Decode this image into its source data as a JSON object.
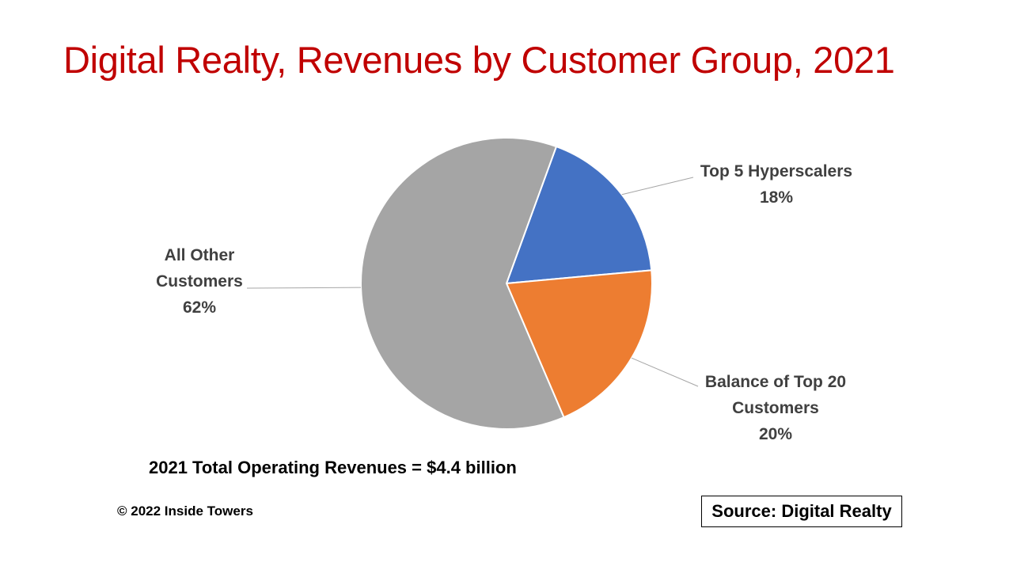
{
  "title": "Digital Realty, Revenues by Customer Group, 2021",
  "chart_data": {
    "type": "pie",
    "slices": [
      {
        "label_lines": [
          "Top 5 Hyperscalers"
        ],
        "value": 18,
        "value_label": "18%",
        "color": "#4472C4"
      },
      {
        "label_lines": [
          "Balance of Top 20",
          "Customers"
        ],
        "value": 20,
        "value_label": "20%",
        "color": "#ED7D31"
      },
      {
        "label_lines": [
          "All Other",
          "Customers"
        ],
        "value": 62,
        "value_label": "62%",
        "color": "#A5A5A5"
      }
    ],
    "legend": "none",
    "data_labels": "outside with leader lines"
  },
  "footer": {
    "total_note": "2021 Total Operating Revenues = $4.4 billion",
    "copyright": "© 2022 Inside Towers",
    "source": "Source: Digital Realty"
  }
}
